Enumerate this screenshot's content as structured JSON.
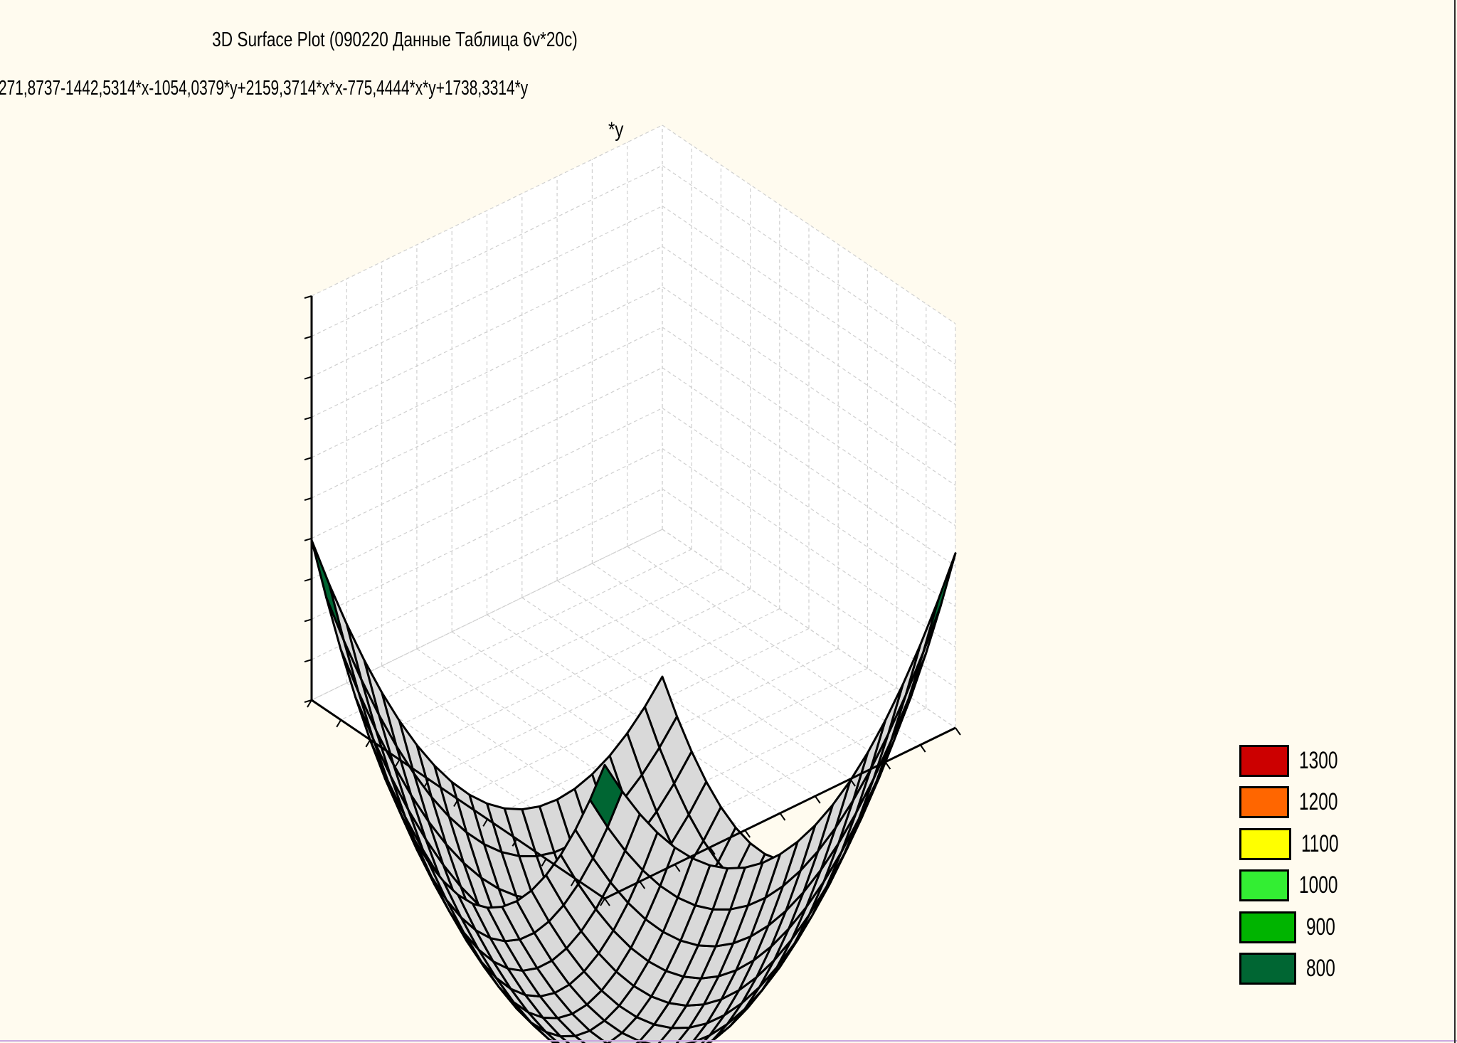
{
  "chart_data": {
    "type": "surface3d",
    "title": "3D Surface Plot (090220 Данные Таблица 6v*20c)",
    "subtitle": "271,8737-1442,5314*x-1054,0379*y+2159,3714*x*x-775,4444*x*y+1738,3314*y",
    "note": "*y",
    "surface": {
      "formula": "271.8737-1442.5314*x-1054.0379*y+2159.3714*x*x-775.4444*x*y+1738.3314*y*y",
      "x_range": [
        0,
        1
      ],
      "y_range": [
        0,
        1
      ],
      "grid_steps": 20
    },
    "zlim": [
      600,
      1500
    ],
    "grid": true,
    "legend": {
      "placement": "bottom-right",
      "entries": [
        {
          "label": "1300",
          "color": "#cc0000"
        },
        {
          "label": "1200",
          "color": "#ff6600"
        },
        {
          "label": "1100",
          "color": "#ffff00"
        },
        {
          "label": "1000",
          "color": "#33ee33"
        },
        {
          "label": "900",
          "color": "#00b400"
        },
        {
          "label": "800",
          "color": "#006633"
        }
      ]
    },
    "low_color": "#d9d9d9"
  }
}
